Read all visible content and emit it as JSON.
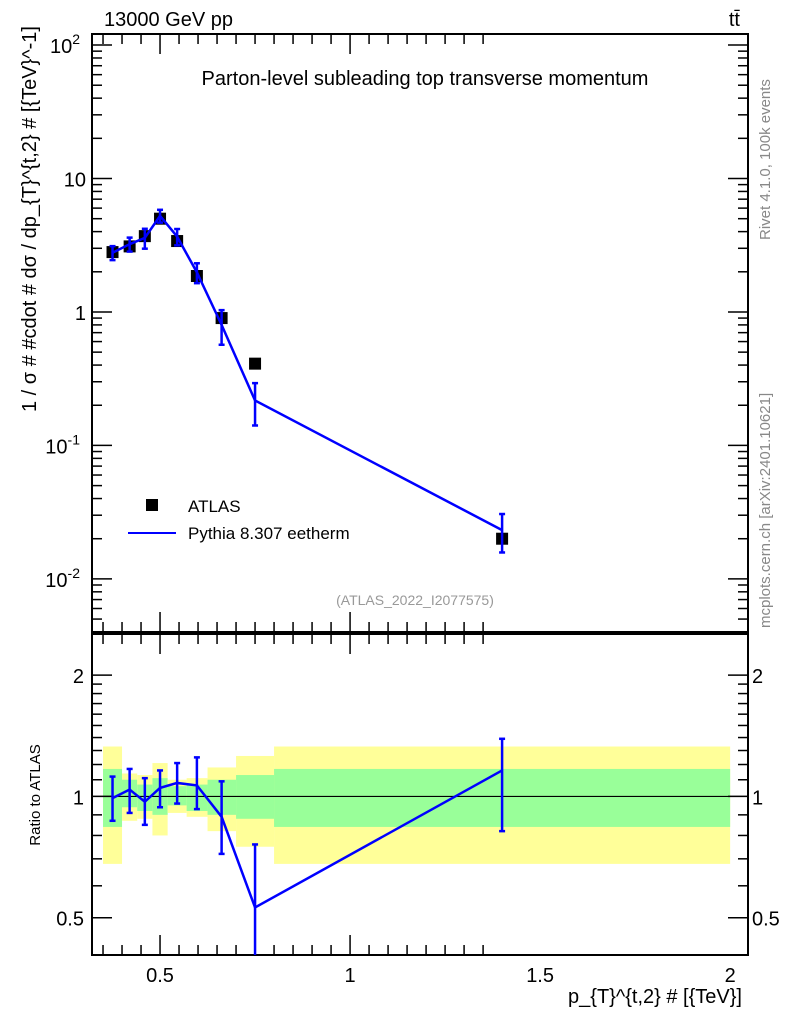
{
  "header": {
    "energy_label": "13000 GeV pp",
    "process_label": "tt̄"
  },
  "side_labels": {
    "rivet": "Rivet 4.1.0,  100k events",
    "source": "mcplots.cern.ch [arXiv:2401.10621]"
  },
  "colors": {
    "data": "#000000",
    "mc": "#0000ff",
    "band_total": "#ffff99",
    "band_stat": "#99ff99",
    "side_text": "#888888"
  },
  "chart_data": [
    {
      "type": "scatter",
      "panel": "main",
      "title": "Parton-level subleading top transverse momentum",
      "ylabel": "1 / σ # #cdot # dσ / dp_{T}^{t,2} # [{TeV}^-1]",
      "yscale": "log",
      "ylim": [
        0.004,
        121
      ],
      "xlim": [
        0.321,
        2.047
      ],
      "yticks": [
        {
          "v": 100,
          "label": "10^2"
        },
        {
          "v": 10,
          "label": "10"
        },
        {
          "v": 1,
          "label": "1"
        },
        {
          "v": 0.1,
          "label": "10^-1"
        },
        {
          "v": 0.01,
          "label": "10^-2"
        }
      ],
      "annotation": "(ATLAS_2022_I2077575)",
      "legend": {
        "placement": "lower-left",
        "entries": [
          "ATLAS",
          "Pythia 8.307 eetherm"
        ]
      },
      "bins": [
        [
          0.35,
          0.4
        ],
        [
          0.4,
          0.44
        ],
        [
          0.44,
          0.48
        ],
        [
          0.48,
          0.52
        ],
        [
          0.52,
          0.57
        ],
        [
          0.57,
          0.625
        ],
        [
          0.625,
          0.7
        ],
        [
          0.7,
          0.8
        ],
        [
          0.8,
          2.0
        ]
      ],
      "x": [
        0.375,
        0.42,
        0.46,
        0.5,
        0.545,
        0.597,
        0.662,
        0.75,
        1.4
      ],
      "series": [
        {
          "name": "ATLAS",
          "values": [
            2.81,
            3.1,
            3.7,
            5.0,
            3.4,
            1.86,
            0.9,
            0.41,
            0.02
          ]
        },
        {
          "name": "Pythia 8.307 eetherm",
          "values": [
            2.78,
            3.22,
            3.59,
            5.25,
            3.67,
            1.98,
            0.8,
            0.217,
            0.0232
          ],
          "rel_err": [
            0.12,
            0.12,
            0.17,
            0.11,
            0.14,
            0.17,
            0.29,
            0.35,
            0.32
          ]
        }
      ]
    },
    {
      "type": "line",
      "panel": "ratio",
      "ylabel": "Ratio to ATLAS",
      "xlabel": "p_{T}^{t,2} # [{TeV}]",
      "yscale": "log",
      "ylim": [
        0.404,
        2.53
      ],
      "xlim": [
        0.321,
        2.047
      ],
      "yticks": [
        {
          "v": 0.5,
          "label": "0.5"
        },
        {
          "v": 1,
          "label": "1"
        },
        {
          "v": 2,
          "label": "2"
        }
      ],
      "xticks": [
        {
          "v": 0.5,
          "label": "0.5"
        },
        {
          "v": 1,
          "label": "1"
        },
        {
          "v": 1.5,
          "label": "1.5"
        },
        {
          "v": 2,
          "label": "2"
        }
      ],
      "band_total": [
        [
          0.68,
          1.33
        ],
        [
          0.87,
          1.14
        ],
        [
          0.88,
          1.13
        ],
        [
          0.8,
          1.21
        ],
        [
          0.91,
          1.1
        ],
        [
          0.89,
          1.11
        ],
        [
          0.82,
          1.18
        ],
        [
          0.75,
          1.26
        ],
        [
          0.68,
          1.33
        ]
      ],
      "band_stat": [
        [
          0.84,
          1.17
        ],
        [
          0.94,
          1.1
        ],
        [
          0.92,
          1.07
        ],
        [
          0.9,
          1.11
        ],
        [
          0.95,
          1.06
        ],
        [
          0.92,
          1.07
        ],
        [
          0.9,
          1.1
        ],
        [
          0.88,
          1.13
        ],
        [
          0.84,
          1.17
        ]
      ],
      "mc_ratio": [
        0.99,
        1.04,
        0.97,
        1.05,
        1.08,
        1.065,
        0.89,
        0.53,
        1.16
      ],
      "mc_ratio_err": [
        [
          0.87,
          1.12
        ],
        [
          0.91,
          1.17
        ],
        [
          0.85,
          1.11
        ],
        [
          0.94,
          1.16
        ],
        [
          0.96,
          1.21
        ],
        [
          0.93,
          1.25
        ],
        [
          0.72,
          1.09
        ],
        [
          0.36,
          0.76
        ],
        [
          0.82,
          1.39
        ]
      ]
    }
  ]
}
